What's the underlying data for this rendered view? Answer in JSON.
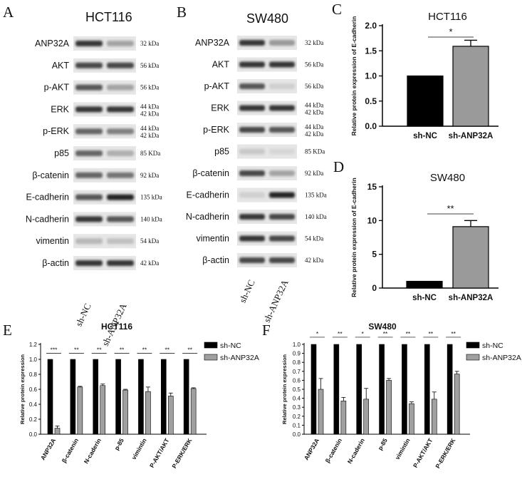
{
  "panels": {
    "A": {
      "letter": "A",
      "title": "HCT116",
      "rows": [
        {
          "label": "ANP32A",
          "kda": "32 kDa",
          "nc": 0.85,
          "sh": 0.45
        },
        {
          "label": "AKT",
          "kda": "56 kDa",
          "nc": 0.8,
          "sh": 0.8
        },
        {
          "label": "p-AKT",
          "kda": "56 kDa",
          "nc": 0.75,
          "sh": 0.45
        },
        {
          "label": "ERK",
          "kda": "44 kDa\n42 kDa",
          "nc": 0.85,
          "sh": 0.85
        },
        {
          "label": "p-ERK",
          "kda": "44 kDa\n42 kDa",
          "nc": 0.7,
          "sh": 0.6
        },
        {
          "label": "p85",
          "kda": "85 KDa",
          "nc": 0.7,
          "sh": 0.4
        },
        {
          "label": "β-catenin",
          "kda": "92 kDa",
          "nc": 0.7,
          "sh": 0.65
        },
        {
          "label": "E-cadherin",
          "kda": "135 kDa",
          "nc": 0.75,
          "sh": 0.9
        },
        {
          "label": "N-cadherin",
          "kda": "140 kDa",
          "nc": 0.85,
          "sh": 0.75
        },
        {
          "label": "vimentin",
          "kda": "54 kDa",
          "nc": 0.35,
          "sh": 0.3
        },
        {
          "label": "β-actin",
          "kda": "42 kDa",
          "nc": 0.85,
          "sh": 0.85
        }
      ],
      "lanes": [
        "sh-NC",
        "sh-ANP32A"
      ]
    },
    "B": {
      "letter": "B",
      "title": "SW480",
      "rows": [
        {
          "label": "ANP32A",
          "kda": "32 kDa",
          "nc": 0.85,
          "sh": 0.5
        },
        {
          "label": "AKT",
          "kda": "56 kDa",
          "nc": 0.85,
          "sh": 0.85
        },
        {
          "label": "p-AKT",
          "kda": "56 kDa",
          "nc": 0.75,
          "sh": 0.2
        },
        {
          "label": "ERK",
          "kda": "44 kDa\n42 kDa",
          "nc": 0.85,
          "sh": 0.85
        },
        {
          "label": "p-ERK",
          "kda": "44 kDa\n42 kDa",
          "nc": 0.8,
          "sh": 0.75
        },
        {
          "label": "p85",
          "kda": "85 KDa",
          "nc": 0.25,
          "sh": 0.15
        },
        {
          "label": "β-catenin",
          "kda": "92 kDa",
          "nc": 0.8,
          "sh": 0.45
        },
        {
          "label": "E-cadherin",
          "kda": "135 kDa",
          "nc": 0.2,
          "sh": 0.9
        },
        {
          "label": "N-cadherin",
          "kda": "140 kDa",
          "nc": 0.85,
          "sh": 0.8
        },
        {
          "label": "vimentin",
          "kda": "54 kDa",
          "nc": 0.85,
          "sh": 0.8
        },
        {
          "label": "β-actin",
          "kda": "42 kDa",
          "nc": 0.8,
          "sh": 0.8
        }
      ],
      "lanes": [
        "sh-NC",
        "sh-ANP32A"
      ]
    }
  },
  "chart_data": [
    {
      "panel": "C",
      "type": "bar",
      "title": "HCT116",
      "ylabel": "Relative protein expression of E-cadherin",
      "categories": [
        "sh-NC",
        "sh-ANP32A"
      ],
      "values": [
        1.0,
        1.59
      ],
      "errors": [
        0,
        0.12
      ],
      "ylim": [
        0,
        2.0
      ],
      "yticks": [
        "0.0",
        "0.5",
        "1.0",
        "1.5",
        "2.0"
      ],
      "colors": [
        "#000000",
        "#9a9a9a"
      ],
      "significance": "*"
    },
    {
      "panel": "D",
      "type": "bar",
      "title": "SW480",
      "ylabel": "Relative protein expression of E-cadherin",
      "categories": [
        "sh-NC",
        "sh-ANP32A"
      ],
      "values": [
        1.0,
        9.1
      ],
      "errors": [
        0,
        0.9
      ],
      "ylim": [
        0,
        15
      ],
      "yticks": [
        "0",
        "5",
        "10",
        "15"
      ],
      "colors": [
        "#000000",
        "#9a9a9a"
      ],
      "significance": "**"
    },
    {
      "panel": "E",
      "type": "bar",
      "title": "HCT116",
      "ylabel": "Relative protein expression",
      "categories": [
        "ANP32A",
        "β-catenin",
        "N-caderin",
        "p-85",
        "vimintin",
        "P-AKT/AKT",
        "P-ERK/ERK"
      ],
      "series": [
        {
          "name": "sh-NC",
          "values": [
            1.0,
            1.0,
            1.0,
            1.0,
            1.0,
            1.0,
            1.0
          ],
          "errors": [
            0,
            0,
            0,
            0,
            0,
            0,
            0
          ],
          "color": "#000000"
        },
        {
          "name": "sh-ANP32A",
          "values": [
            0.08,
            0.63,
            0.65,
            0.59,
            0.57,
            0.51,
            0.61
          ],
          "errors": [
            0.03,
            0.01,
            0.02,
            0.01,
            0.06,
            0.04,
            0.01
          ],
          "color": "#a0a0a0"
        }
      ],
      "ylim": [
        0,
        1.2
      ],
      "yticks": [
        "0.0",
        "0.2",
        "0.4",
        "0.6",
        "0.8",
        "1.0",
        "1.2"
      ],
      "significance": [
        "***",
        "**",
        "**",
        "**",
        "**",
        "**",
        "**"
      ],
      "legend": "top-right"
    },
    {
      "panel": "F",
      "type": "bar",
      "title": "SW480",
      "ylabel": "Relative protein expression",
      "categories": [
        "ANP32A",
        "β-catenin",
        "N-caderin",
        "p-85",
        "vimintin",
        "P-AKT/AKT",
        "P-ERK/ERK"
      ],
      "series": [
        {
          "name": "sh-NC",
          "values": [
            1.0,
            1.0,
            1.0,
            1.0,
            1.0,
            1.0,
            1.0
          ],
          "errors": [
            0,
            0,
            0,
            0,
            0,
            0,
            0
          ],
          "color": "#000000"
        },
        {
          "name": "sh-ANP32A",
          "values": [
            0.5,
            0.37,
            0.39,
            0.6,
            0.34,
            0.39,
            0.67
          ],
          "errors": [
            0.12,
            0.04,
            0.12,
            0.02,
            0.02,
            0.08,
            0.03
          ],
          "color": "#a0a0a0"
        }
      ],
      "ylim": [
        0,
        1.0
      ],
      "yticks": [
        "0.0",
        "0.1",
        "0.2",
        "0.3",
        "0.4",
        "0.5",
        "0.6",
        "0.7",
        "0.8",
        "0.9",
        "1.0"
      ],
      "significance": [
        "*",
        "**",
        "*",
        "**",
        "**",
        "**",
        "**"
      ],
      "legend": "top-right"
    }
  ]
}
